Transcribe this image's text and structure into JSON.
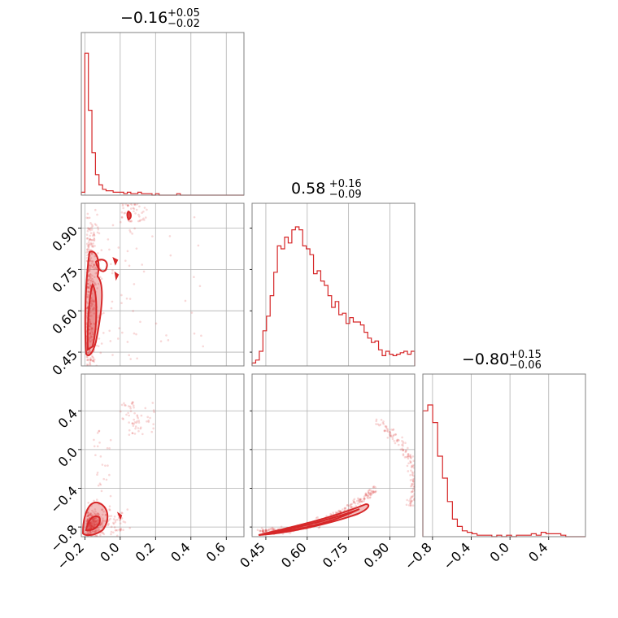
{
  "chart_data": {
    "type": "corner",
    "color": "#d62728",
    "parameters": [
      {
        "index": 0,
        "title": "−0.16",
        "err_plus": "+0.05",
        "err_minus": "−0.02",
        "range": [
          -0.22,
          0.7
        ],
        "ticks": [
          -0.2,
          0.0,
          0.2,
          0.4,
          0.6
        ],
        "tick_labels": [
          "−0.2",
          "0.0",
          "0.2",
          "0.4",
          "0.6"
        ],
        "hist_bins": [
          0.02,
          0.97,
          0.58,
          0.29,
          0.14,
          0.07,
          0.04,
          0.03,
          0.03,
          0.02,
          0.02,
          0.02,
          0.01,
          0.02,
          0.01,
          0.01,
          0.02,
          0.01,
          0.01,
          0.01,
          0.0,
          0.01,
          0.0,
          0.0,
          0.0,
          0.0,
          0.0,
          0.01,
          0.0,
          0.0,
          0.0,
          0.0,
          0.0,
          0.0,
          0.0,
          0.0,
          0.0,
          0.0,
          0.0,
          0.0,
          0.0,
          0.0,
          0.0,
          0.0,
          0.0,
          0.0
        ]
      },
      {
        "index": 1,
        "title": "0.58",
        "err_plus": "+0.16",
        "err_minus": "−0.09",
        "range": [
          0.4,
          0.99
        ],
        "ticks": [
          0.45,
          0.6,
          0.75,
          0.9
        ],
        "tick_labels": [
          "0.45",
          "0.60",
          "0.75",
          "0.90"
        ],
        "hist_bins": [
          0.02,
          0.04,
          0.1,
          0.24,
          0.34,
          0.48,
          0.64,
          0.82,
          0.8,
          0.88,
          0.84,
          0.93,
          0.95,
          0.93,
          0.82,
          0.8,
          0.76,
          0.63,
          0.65,
          0.58,
          0.55,
          0.48,
          0.4,
          0.44,
          0.35,
          0.36,
          0.29,
          0.33,
          0.3,
          0.3,
          0.28,
          0.23,
          0.19,
          0.16,
          0.17,
          0.11,
          0.07,
          0.1,
          0.08,
          0.07,
          0.08,
          0.09,
          0.1,
          0.08,
          0.1
        ]
      },
      {
        "index": 2,
        "title": "−0.80",
        "err_plus": "+0.15",
        "err_minus": "−0.06",
        "range": [
          -0.9,
          0.78
        ],
        "ticks": [
          -0.8,
          -0.4,
          0.0,
          0.4
        ],
        "tick_labels": [
          "−0.8",
          "−0.4",
          "0.0",
          "0.4"
        ],
        "hist_bins": [
          0.86,
          0.9,
          0.78,
          0.55,
          0.4,
          0.24,
          0.12,
          0.07,
          0.04,
          0.03,
          0.02,
          0.01,
          0.01,
          0.01,
          0.0,
          0.01,
          0.0,
          0.01,
          0.0,
          0.01,
          0.01,
          0.01,
          0.02,
          0.01,
          0.03,
          0.02,
          0.02,
          0.02,
          0.01,
          0.0,
          0.0,
          0.0,
          0.0
        ]
      }
    ],
    "contours": [
      {
        "pair": "1-0",
        "center": [
          -0.18,
          0.62
        ],
        "scatter_extra": [
          [
            0.02,
            0.97
          ],
          [
            0.05,
            0.99
          ],
          [
            0.08,
            0.96
          ],
          [
            0.12,
            0.98
          ]
        ]
      },
      {
        "pair": "2-0",
        "center": [
          -0.16,
          -0.74
        ],
        "scatter_extra": [
          [
            0.05,
            0.3
          ],
          [
            0.1,
            0.45
          ],
          [
            0.15,
            0.4
          ]
        ]
      },
      {
        "pair": "2-1",
        "center": [
          0.55,
          -0.85
        ],
        "scatter_extra": [
          [
            0.88,
            0.45
          ],
          [
            0.95,
            0.2
          ],
          [
            0.97,
            0.0
          ]
        ]
      }
    ],
    "grid": true
  }
}
